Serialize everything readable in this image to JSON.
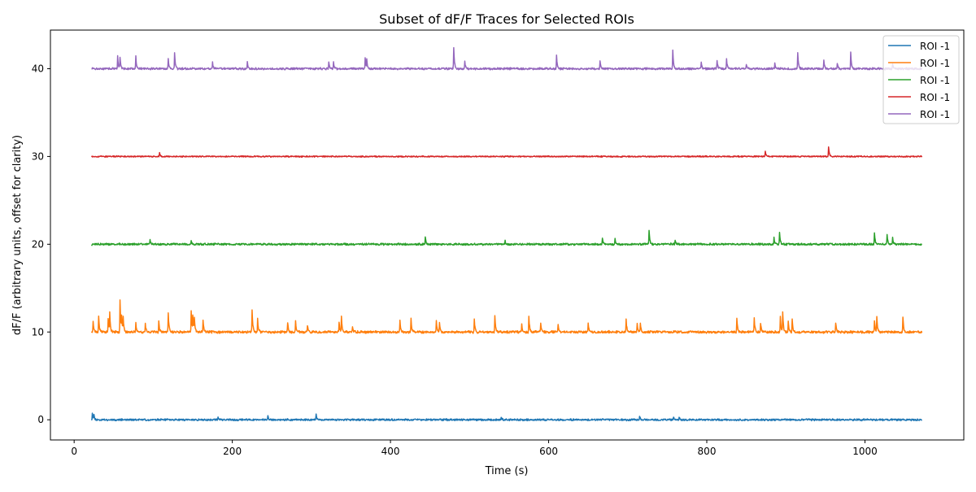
{
  "chart_data": {
    "type": "line",
    "title": "Subset of dF/F Traces for Selected ROIs",
    "xlabel": "Time (s)",
    "ylabel": "dF/F (arbitrary units, offset for clarity)",
    "xlim": [
      -30,
      1125
    ],
    "ylim": [
      -2.3,
      44.4
    ],
    "x_ticks": [
      0,
      200,
      400,
      600,
      800,
      1000
    ],
    "y_ticks": [
      0,
      10,
      20,
      30,
      40
    ],
    "x_range": [
      22,
      1072
    ],
    "grid": false,
    "legend_position": "top-right",
    "series": [
      {
        "name": "ROI -1",
        "color": "#1f77b4",
        "offset": 0,
        "noise": 0.09,
        "seed": 11,
        "events": [
          [
            23,
            0.8
          ],
          [
            25,
            0.5
          ],
          [
            182,
            0.35
          ],
          [
            245,
            0.4
          ],
          [
            306,
            0.6
          ],
          [
            540,
            0.35
          ],
          [
            715,
            0.45
          ],
          [
            758,
            0.35
          ],
          [
            765,
            0.3
          ]
        ]
      },
      {
        "name": "ROI -1",
        "color": "#ff7f0e",
        "offset": 10,
        "noise": 0.12,
        "seed": 23,
        "events": [
          [
            24,
            1.3
          ],
          [
            31,
            1.9
          ],
          [
            43,
            1.6
          ],
          [
            45,
            2.0
          ],
          [
            58,
            3.7
          ],
          [
            60,
            1.6
          ],
          [
            62,
            1.5
          ],
          [
            78,
            1.1
          ],
          [
            90,
            1.0
          ],
          [
            107,
            1.3
          ],
          [
            119,
            2.2
          ],
          [
            148,
            2.4
          ],
          [
            150,
            1.8
          ],
          [
            152,
            1.5
          ],
          [
            163,
            1.4
          ],
          [
            225,
            2.6
          ],
          [
            232,
            1.5
          ],
          [
            270,
            1.1
          ],
          [
            280,
            1.2
          ],
          [
            295,
            0.8
          ],
          [
            335,
            1.2
          ],
          [
            338,
            1.8
          ],
          [
            352,
            0.6
          ],
          [
            412,
            1.2
          ],
          [
            426,
            1.5
          ],
          [
            458,
            1.3
          ],
          [
            462,
            1.1
          ],
          [
            506,
            1.5
          ],
          [
            532,
            2.0
          ],
          [
            566,
            1.0
          ],
          [
            575,
            1.8
          ],
          [
            590,
            1.0
          ],
          [
            612,
            0.9
          ],
          [
            650,
            1.1
          ],
          [
            698,
            1.4
          ],
          [
            712,
            1.0
          ],
          [
            716,
            0.9
          ],
          [
            838,
            1.5
          ],
          [
            860,
            1.6
          ],
          [
            868,
            1.1
          ],
          [
            893,
            1.7
          ],
          [
            896,
            2.3
          ],
          [
            903,
            1.4
          ],
          [
            908,
            1.4
          ],
          [
            963,
            1.1
          ],
          [
            1012,
            1.4
          ],
          [
            1015,
            1.8
          ],
          [
            1048,
            1.7
          ]
        ]
      },
      {
        "name": "ROI -1",
        "color": "#2ca02c",
        "offset": 20,
        "noise": 0.1,
        "seed": 37,
        "events": [
          [
            96,
            0.5
          ],
          [
            148,
            0.4
          ],
          [
            444,
            0.8
          ],
          [
            545,
            0.4
          ],
          [
            668,
            0.6
          ],
          [
            684,
            0.7
          ],
          [
            727,
            1.7
          ],
          [
            760,
            0.4
          ],
          [
            885,
            0.7
          ],
          [
            892,
            1.3
          ],
          [
            1012,
            1.3
          ],
          [
            1028,
            1.1
          ],
          [
            1035,
            0.8
          ]
        ]
      },
      {
        "name": "ROI -1",
        "color": "#d62728",
        "offset": 30,
        "noise": 0.06,
        "seed": 53,
        "events": [
          [
            108,
            0.45
          ],
          [
            874,
            0.6
          ],
          [
            954,
            1.1
          ]
        ]
      },
      {
        "name": "ROI -1",
        "color": "#9467bd",
        "offset": 40,
        "noise": 0.1,
        "seed": 71,
        "events": [
          [
            55,
            1.4
          ],
          [
            58,
            1.3
          ],
          [
            78,
            1.4
          ],
          [
            119,
            1.1
          ],
          [
            127,
            1.8
          ],
          [
            175,
            0.7
          ],
          [
            219,
            0.8
          ],
          [
            322,
            0.8
          ],
          [
            328,
            0.7
          ],
          [
            368,
            1.3
          ],
          [
            370,
            1.0
          ],
          [
            480,
            2.4
          ],
          [
            494,
            0.8
          ],
          [
            610,
            1.5
          ],
          [
            665,
            0.9
          ],
          [
            757,
            2.1
          ],
          [
            793,
            0.7
          ],
          [
            813,
            1.0
          ],
          [
            825,
            1.1
          ],
          [
            850,
            0.5
          ],
          [
            886,
            0.6
          ],
          [
            915,
            1.9
          ],
          [
            948,
            1.0
          ],
          [
            965,
            0.6
          ],
          [
            982,
            1.9
          ],
          [
            1035,
            0.6
          ]
        ]
      }
    ]
  }
}
